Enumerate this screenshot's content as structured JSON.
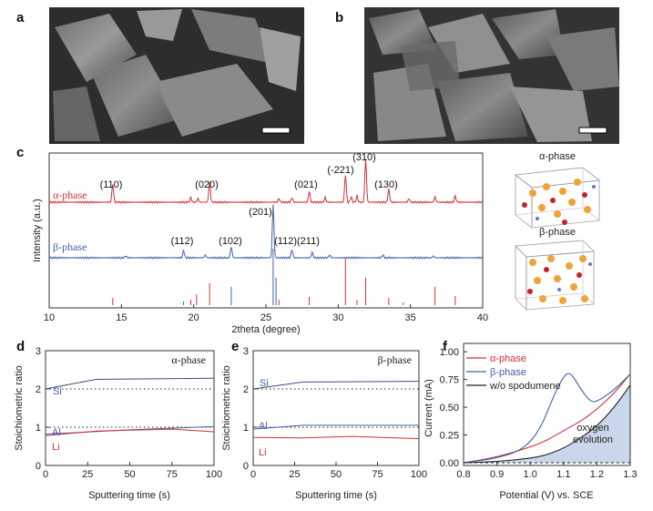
{
  "panel_labels": {
    "a": "a",
    "b": "b",
    "c": "c",
    "d": "d",
    "e": "e",
    "f": "f"
  },
  "colors": {
    "alpha": "#d22f36",
    "beta": "#3e63a8",
    "black": "#222222",
    "fill": "#c9d7ea"
  },
  "panel_c": {
    "xlabel": "2theta (degree)",
    "ylabel": "Intensity (a.u.)",
    "xticks": [
      "10",
      "15",
      "20",
      "25",
      "30",
      "35",
      "40"
    ],
    "alpha_label": "α-phase",
    "beta_label": "β-phase",
    "alpha_peaks": [
      "(110)",
      "(020)",
      "(021)",
      "(-221)",
      "(310)",
      "(130)"
    ],
    "beta_peaks": [
      "(201)",
      "(112)",
      "(102)",
      "(112)(211)"
    ],
    "struct_alpha_label": "α-phase",
    "struct_beta_label": "β-phase"
  },
  "panel_d": {
    "phase_label": "α-phase",
    "xlabel": "Sputtering time (s)",
    "ylabel": "Stoichiometric ratio",
    "xticks": [
      "0",
      "25",
      "50",
      "75",
      "100"
    ],
    "yticks": [
      "0",
      "1",
      "2",
      "3"
    ],
    "series_labels": [
      "Si",
      "Al",
      "Li"
    ]
  },
  "panel_e": {
    "phase_label": "β-phase",
    "xlabel": "Sputtering time (s)",
    "ylabel": "Stoichiometric ratio",
    "xticks": [
      "0",
      "25",
      "50",
      "75",
      "100"
    ],
    "yticks": [
      "0",
      "1",
      "2",
      "3"
    ],
    "series_labels": [
      "Si",
      "Al",
      "Li"
    ]
  },
  "panel_f": {
    "xlabel": "Potential (V) vs. SCE",
    "ylabel": "Current (mA)",
    "xticks": [
      "0.8",
      "0.9",
      "1.0",
      "1.1",
      "1.2",
      "1.3"
    ],
    "yticks": [
      "0.00",
      "0.25",
      "0.50",
      "0.75",
      "1.00"
    ],
    "legend": [
      "α-phase",
      "β-phase",
      "w/o spodumene"
    ],
    "annotation_line1": "oxygen",
    "annotation_line2": "evolution"
  },
  "chart_data": [
    {
      "type": "line",
      "panel": "c",
      "xlabel": "2theta (degree)",
      "ylabel": "Intensity (a.u.)",
      "xlim": [
        10,
        40
      ],
      "series": [
        {
          "name": "α-phase",
          "peaks": [
            [
              14.4,
              "(110)"
            ],
            [
              21.1,
              "(020)"
            ],
            [
              28.0,
              "(021)"
            ],
            [
              30.5,
              "(-221)"
            ],
            [
              31.9,
              "(310)"
            ],
            [
              33.5,
              "(130)"
            ]
          ]
        },
        {
          "name": "β-phase",
          "peaks": [
            [
              25.5,
              "(201)"
            ],
            [
              19.3,
              "(112)"
            ],
            [
              22.6,
              "(102)"
            ],
            [
              26.8,
              "(112)"
            ],
            [
              28.2,
              "(211)"
            ]
          ]
        }
      ]
    },
    {
      "type": "line",
      "panel": "d",
      "xlabel": "Sputtering time (s)",
      "ylabel": "Stoichiometric ratio",
      "xlim": [
        0,
        100
      ],
      "ylim": [
        0,
        3
      ],
      "series": [
        {
          "name": "Si",
          "x": [
            0,
            30,
            100
          ],
          "y": [
            2.0,
            2.25,
            2.28
          ]
        },
        {
          "name": "Al",
          "x": [
            0,
            50,
            100
          ],
          "y": [
            0.82,
            0.93,
            1.02
          ]
        },
        {
          "name": "Li",
          "x": [
            0,
            30,
            75,
            100
          ],
          "y": [
            0.78,
            0.9,
            0.95,
            0.88
          ]
        }
      ]
    },
    {
      "type": "line",
      "panel": "e",
      "xlabel": "Sputtering time (s)",
      "ylabel": "Stoichiometric ratio",
      "xlim": [
        0,
        100
      ],
      "ylim": [
        0,
        3
      ],
      "series": [
        {
          "name": "Si",
          "x": [
            0,
            30,
            100
          ],
          "y": [
            2.0,
            2.18,
            2.2
          ]
        },
        {
          "name": "Al",
          "x": [
            0,
            30,
            100
          ],
          "y": [
            0.95,
            1.05,
            1.05
          ]
        },
        {
          "name": "Li",
          "x": [
            0,
            30,
            60,
            100
          ],
          "y": [
            0.73,
            0.72,
            0.76,
            0.7
          ]
        }
      ]
    },
    {
      "type": "line",
      "panel": "f",
      "xlabel": "Potential (V) vs. SCE",
      "ylabel": "Current (mA)",
      "xlim": [
        0.8,
        1.3
      ],
      "ylim": [
        0,
        1.1
      ],
      "series": [
        {
          "name": "α-phase",
          "x": [
            0.8,
            0.9,
            1.0,
            1.05,
            1.1,
            1.15,
            1.2,
            1.25,
            1.3
          ],
          "y": [
            0,
            0.05,
            0.14,
            0.2,
            0.29,
            0.37,
            0.48,
            0.62,
            0.8
          ]
        },
        {
          "name": "β-phase",
          "x": [
            0.8,
            0.9,
            0.98,
            1.03,
            1.07,
            1.1,
            1.12,
            1.15,
            1.18,
            1.2,
            1.25,
            1.3
          ],
          "y": [
            0,
            0.04,
            0.12,
            0.3,
            0.6,
            0.78,
            0.82,
            0.67,
            0.55,
            0.55,
            0.65,
            0.8
          ]
        },
        {
          "name": "w/o spodumene",
          "x": [
            0.8,
            0.9,
            1.0,
            1.05,
            1.1,
            1.15,
            1.2,
            1.25,
            1.3
          ],
          "y": [
            0,
            0.01,
            0.04,
            0.07,
            0.13,
            0.22,
            0.33,
            0.49,
            0.7
          ]
        }
      ]
    }
  ]
}
